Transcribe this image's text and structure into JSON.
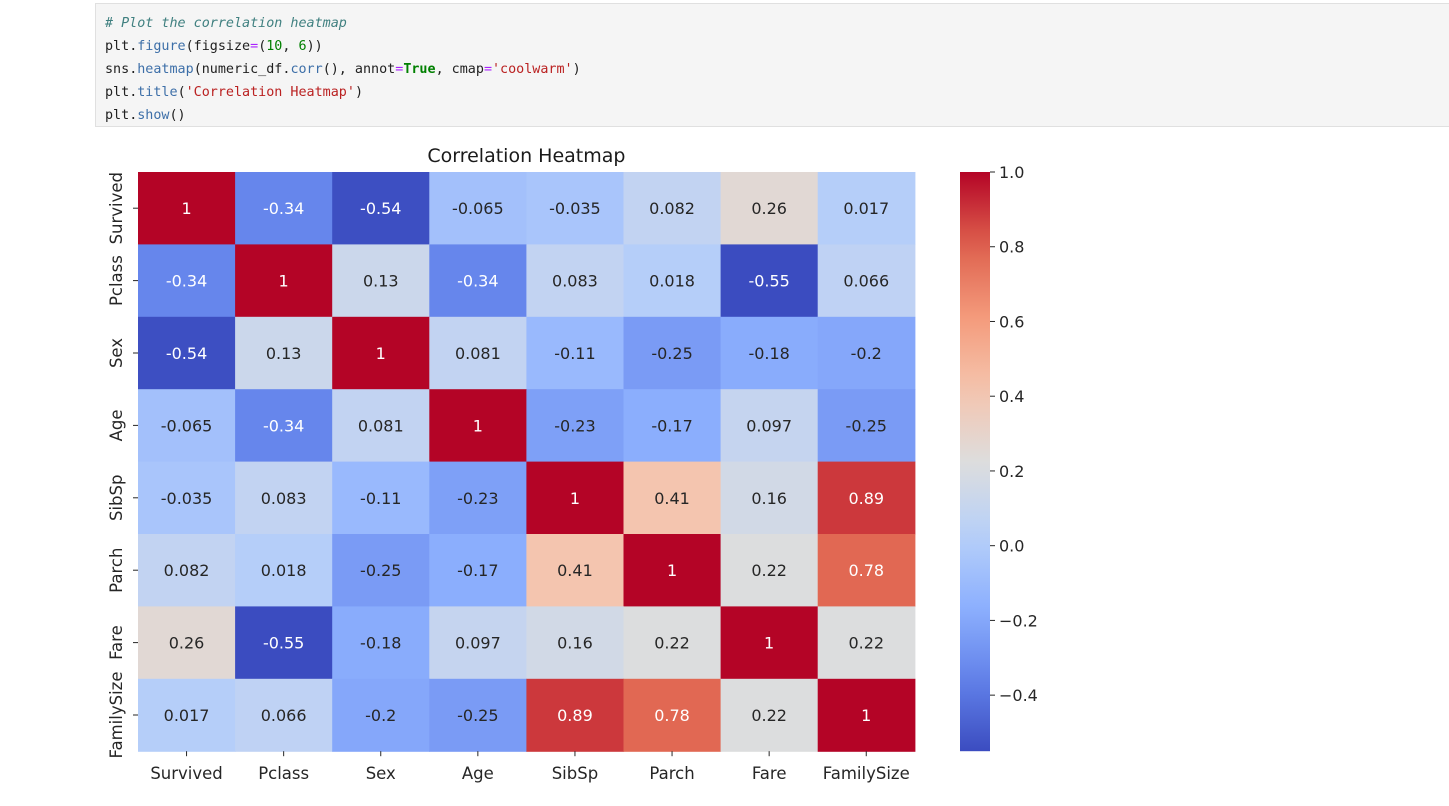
{
  "code_cell": {
    "lines": [
      [
        {
          "t": "comment",
          "v": "# Plot the correlation heatmap"
        }
      ],
      [
        {
          "t": "name",
          "v": "plt"
        },
        {
          "t": "punct",
          "v": "."
        },
        {
          "t": "attr",
          "v": "figure"
        },
        {
          "t": "punct",
          "v": "(figsize"
        },
        {
          "t": "op",
          "v": "="
        },
        {
          "t": "punct",
          "v": "("
        },
        {
          "t": "num",
          "v": "10"
        },
        {
          "t": "punct",
          "v": ", "
        },
        {
          "t": "num",
          "v": "6"
        },
        {
          "t": "punct",
          "v": "))"
        }
      ],
      [
        {
          "t": "name",
          "v": "sns"
        },
        {
          "t": "punct",
          "v": "."
        },
        {
          "t": "attr",
          "v": "heatmap"
        },
        {
          "t": "punct",
          "v": "(numeric_df"
        },
        {
          "t": "punct",
          "v": "."
        },
        {
          "t": "attr",
          "v": "corr"
        },
        {
          "t": "punct",
          "v": "(), annot"
        },
        {
          "t": "op",
          "v": "="
        },
        {
          "t": "kw",
          "v": "True"
        },
        {
          "t": "punct",
          "v": ", cmap"
        },
        {
          "t": "op",
          "v": "="
        },
        {
          "t": "str",
          "v": "'coolwarm'"
        },
        {
          "t": "punct",
          "v": ")"
        }
      ],
      [
        {
          "t": "name",
          "v": "plt"
        },
        {
          "t": "punct",
          "v": "."
        },
        {
          "t": "attr",
          "v": "title"
        },
        {
          "t": "punct",
          "v": "("
        },
        {
          "t": "str",
          "v": "'Correlation Heatmap'"
        },
        {
          "t": "punct",
          "v": ")"
        }
      ],
      [
        {
          "t": "name",
          "v": "plt"
        },
        {
          "t": "punct",
          "v": "."
        },
        {
          "t": "attr",
          "v": "show"
        },
        {
          "t": "punct",
          "v": "()"
        }
      ]
    ]
  },
  "chart_data": {
    "type": "heatmap",
    "title": "Correlation Heatmap",
    "colormap": "coolwarm",
    "x_labels": [
      "Survived",
      "Pclass",
      "Sex",
      "Age",
      "SibSp",
      "Parch",
      "Fare",
      "FamilySize"
    ],
    "y_labels": [
      "Survived",
      "Pclass",
      "Sex",
      "Age",
      "SibSp",
      "Parch",
      "Fare",
      "FamilySize"
    ],
    "values": [
      [
        1,
        -0.34,
        -0.54,
        -0.065,
        -0.035,
        0.082,
        0.26,
        0.017
      ],
      [
        -0.34,
        1,
        0.13,
        -0.34,
        0.083,
        0.018,
        -0.55,
        0.066
      ],
      [
        -0.54,
        0.13,
        1,
        0.081,
        -0.11,
        -0.25,
        -0.18,
        -0.2
      ],
      [
        -0.065,
        -0.34,
        0.081,
        1,
        -0.23,
        -0.17,
        0.097,
        -0.25
      ],
      [
        -0.035,
        0.083,
        -0.11,
        -0.23,
        1,
        0.41,
        0.16,
        0.89
      ],
      [
        0.082,
        0.018,
        -0.25,
        -0.17,
        0.41,
        1,
        0.22,
        0.78
      ],
      [
        0.26,
        -0.55,
        -0.18,
        0.097,
        0.16,
        0.22,
        1,
        0.22
      ],
      [
        0.017,
        0.066,
        -0.2,
        -0.25,
        0.89,
        0.78,
        0.22,
        1
      ]
    ],
    "annotations": [
      [
        "1",
        "-0.34",
        "-0.54",
        "-0.065",
        "-0.035",
        "0.082",
        "0.26",
        "0.017"
      ],
      [
        "-0.34",
        "1",
        "0.13",
        "-0.34",
        "0.083",
        "0.018",
        "-0.55",
        "0.066"
      ],
      [
        "-0.54",
        "0.13",
        "1",
        "0.081",
        "-0.11",
        "-0.25",
        "-0.18",
        "-0.2"
      ],
      [
        "-0.065",
        "-0.34",
        "0.081",
        "1",
        "-0.23",
        "-0.17",
        "0.097",
        "-0.25"
      ],
      [
        "-0.035",
        "0.083",
        "-0.11",
        "-0.23",
        "1",
        "0.41",
        "0.16",
        "0.89"
      ],
      [
        "0.082",
        "0.018",
        "-0.25",
        "-0.17",
        "0.41",
        "1",
        "0.22",
        "0.78"
      ],
      [
        "0.26",
        "-0.55",
        "-0.18",
        "0.097",
        "0.16",
        "0.22",
        "1",
        "0.22"
      ],
      [
        "0.017",
        "0.066",
        "-0.2",
        "-0.25",
        "0.89",
        "0.78",
        "0.22",
        "1"
      ]
    ],
    "colorbar": {
      "vmin": -0.55,
      "vmax": 1.0,
      "ticks": [
        1.0,
        0.8,
        0.6,
        0.4,
        0.2,
        0.0,
        -0.2,
        -0.4
      ],
      "tick_labels": [
        "1.0",
        "0.8",
        "0.6",
        "0.4",
        "0.2",
        "0.0",
        "−0.2",
        "−0.4"
      ]
    }
  }
}
